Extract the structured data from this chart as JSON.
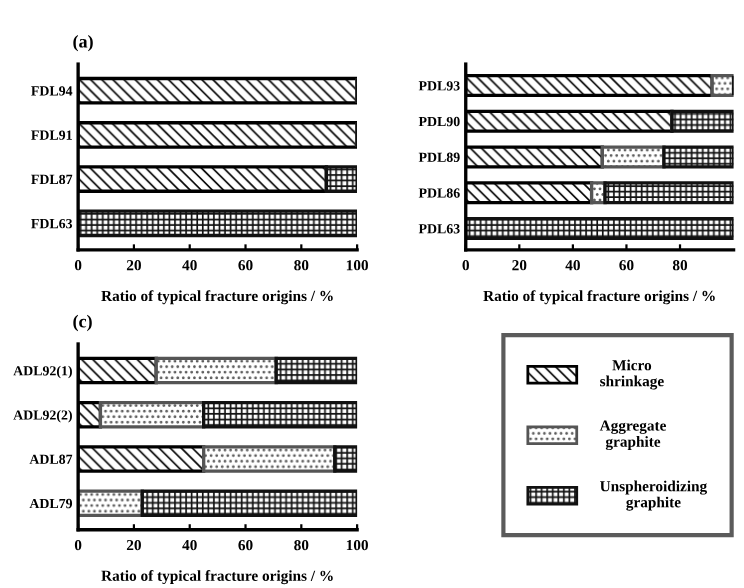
{
  "chart_data": [
    {
      "type": "bar",
      "title": "(a)",
      "orientation": "horizontal",
      "stacked": true,
      "xlabel": "Ratio of typical fracture origins / %",
      "categories": [
        "FDL94",
        "FDL91",
        "FDL87",
        "FDL63"
      ],
      "xlim": [
        0,
        100
      ],
      "xticks": [
        0,
        20,
        40,
        60,
        80,
        100
      ],
      "grid": false,
      "legend": false,
      "series": [
        {
          "color": "#000000",
          "values": [
            100,
            100,
            89,
            0
          ]
        },
        {
          "color": "#555555",
          "values": [
            0,
            0,
            0,
            0
          ]
        },
        {
          "color": "#111111",
          "values": [
            0,
            0,
            11,
            100
          ]
        }
      ]
    },
    {
      "type": "bar",
      "orientation": "horizontal",
      "stacked": true,
      "xlabel": "Ratio of typical fracture origins / %",
      "categories": [
        "PDL93",
        "PDL90",
        "PDL89",
        "PDL86",
        "PDL63"
      ],
      "xlim": [
        0,
        100
      ],
      "xticks": [
        0,
        20,
        40,
        60,
        80
      ],
      "grid": false,
      "legend": false,
      "series": [
        {
          "color": "#000000",
          "values": [
            92,
            77,
            51,
            47,
            0
          ]
        },
        {
          "color": "#555555",
          "values": [
            8,
            0,
            23,
            5,
            0
          ]
        },
        {
          "color": "#111111",
          "values": [
            0,
            23,
            26,
            48,
            100
          ]
        }
      ]
    },
    {
      "type": "bar",
      "title": "(c)",
      "orientation": "horizontal",
      "stacked": true,
      "xlabel": "Ratio of typical fracture origins / %",
      "categories": [
        "ADL92(1)",
        "ADL92(2)",
        "ADL87",
        "ADL79"
      ],
      "xlim": [
        0,
        100
      ],
      "xticks": [
        0,
        20,
        40,
        60,
        80,
        100
      ],
      "grid": false,
      "legend": "right",
      "series": [
        {
          "name": "Micro\nshrinkage",
          "color": "#000000",
          "values": [
            28,
            8,
            45,
            0
          ]
        },
        {
          "name": "Aggregate\ngraphite",
          "color": "#555555",
          "values": [
            43,
            37,
            47,
            23
          ]
        },
        {
          "name": "Unspheroidizing\ngraphite",
          "color": "#111111",
          "values": [
            29,
            55,
            8,
            77
          ]
        }
      ]
    }
  ]
}
